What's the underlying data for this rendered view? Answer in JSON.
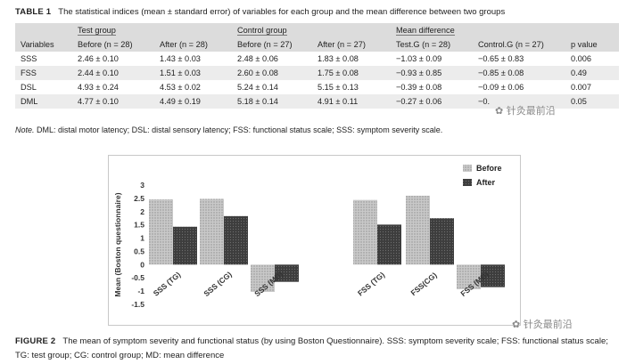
{
  "table": {
    "label": "TABLE 1",
    "caption": "The statistical indices (mean ± standard error) of variables for each group and the mean difference between two groups",
    "group_headers": [
      "Test group",
      "Control group",
      "Mean difference"
    ],
    "sub_headers": [
      "Variables",
      "Before (n = 28)",
      "After (n = 28)",
      "Before (n = 27)",
      "After (n = 27)",
      "Test.G (n = 28)",
      "Control.G (n = 27)",
      "p value"
    ],
    "rows": [
      [
        "SSS",
        "2.46 ± 0.10",
        "1.43 ± 0.03",
        "2.48 ± 0.06",
        "1.83 ± 0.08",
        "−1.03 ± 0.09",
        "−0.65 ± 0.83",
        "0.006"
      ],
      [
        "FSS",
        "2.44 ± 0.10",
        "1.51 ± 0.03",
        "2.60 ± 0.08",
        "1.75 ± 0.08",
        "−0.93 ± 0.85",
        "−0.85 ± 0.08",
        "0.49"
      ],
      [
        "DSL",
        "4.93 ± 0.24",
        "4.53 ± 0.02",
        "5.24 ± 0.14",
        "5.15 ± 0.13",
        "−0.39 ± 0.08",
        "−0.09 ± 0.06",
        "0.007"
      ],
      [
        "DML",
        "4.77 ± 0.10",
        "4.49 ± 0.19",
        "5.18 ± 0.14",
        "4.91 ± 0.11",
        "−0.27 ± 0.06",
        "−0.",
        "0.05"
      ]
    ],
    "note_label": "Note.",
    "note_text": "DML: distal motor latency; DSL: distal sensory latency; FSS: functional status scale; SSS: symptom severity scale."
  },
  "watermarks": [
    "针灸最前沿",
    "针灸最前沿"
  ],
  "figure": {
    "label": "FIGURE 2",
    "caption": "The mean of symptom severity and functional status (by using Boston Questionnaire). SSS: symptom severity scale; FSS: functional status scale; TG: test group; CG: control group; MD: mean difference"
  },
  "chart_data": {
    "type": "bar",
    "title": "",
    "xlabel": "",
    "ylabel": "Mean (Boston questionnaire)",
    "ylim": [
      -1.5,
      3
    ],
    "yticks": [
      "3",
      "2.5",
      "2",
      "1.5",
      "1",
      "0.5",
      "0",
      "-0.5",
      "-1",
      "-1.5"
    ],
    "categories": [
      "SSS (TG)",
      "SSS (CG)",
      "SSS (MD)",
      "FSS (TG)",
      "FSS(CG)",
      "FSS (MD)"
    ],
    "series": [
      {
        "name": "Before",
        "values": [
          2.46,
          2.48,
          -1.03,
          2.44,
          2.6,
          -0.93
        ],
        "color": "#bdbdbd"
      },
      {
        "name": "After",
        "values": [
          1.43,
          1.83,
          -0.65,
          1.51,
          1.75,
          -0.85
        ],
        "color": "#4a4a4a"
      }
    ],
    "legend_position": "top-right",
    "grid": false
  }
}
